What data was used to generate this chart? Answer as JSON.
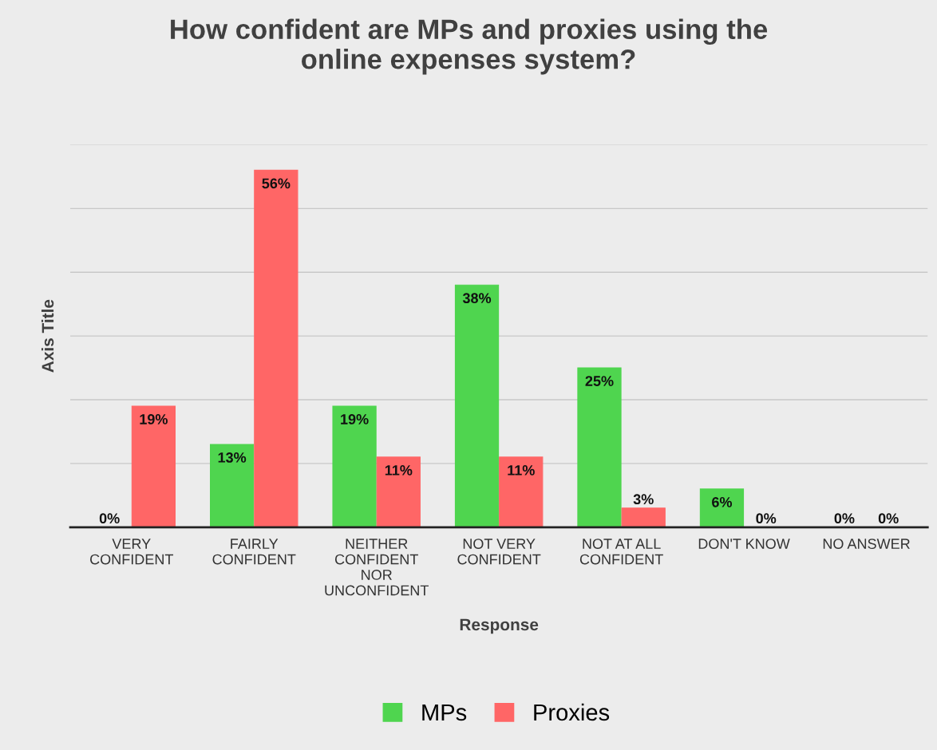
{
  "chart_data": {
    "type": "bar",
    "title": "How confident are MPs and proxies using the\nonline expenses system?",
    "xlabel": "Response",
    "ylabel": "Axis Title",
    "categories": [
      "VERY\nCONFIDENT",
      "FAIRLY\nCONFIDENT",
      "NEITHER\nCONFIDENT\nNOR\nUNCONFIDENT",
      "NOT VERY\nCONFIDENT",
      "NOT AT ALL\nCONFIDENT",
      "DON'T KNOW",
      "NO ANSWER"
    ],
    "series": [
      {
        "name": "MPs",
        "color": "#4fd54f",
        "values": [
          0,
          13,
          19,
          38,
          25,
          6,
          0
        ],
        "value_labels": [
          "0%",
          "13%",
          "19%",
          "38%",
          "25%",
          "6%",
          "0%"
        ]
      },
      {
        "name": "Proxies",
        "color": "#ff6666",
        "values": [
          19,
          56,
          11,
          11,
          3,
          0,
          0
        ],
        "value_labels": [
          "19%",
          "56%",
          "11%",
          "11%",
          "3%",
          "0%",
          "0%"
        ]
      }
    ],
    "ylim": [
      0,
      60
    ],
    "yticks": [
      {
        "value": 0,
        "label": null
      },
      {
        "value": 10,
        "label": null
      },
      {
        "value": 20,
        "label": null
      },
      {
        "value": 30,
        "label": null
      },
      {
        "value": 40,
        "label": null
      },
      {
        "value": 50,
        "label": null
      },
      {
        "value": 60,
        "label": null
      }
    ],
    "grid": "y",
    "legend": "bottom",
    "tick_labels": "x"
  }
}
